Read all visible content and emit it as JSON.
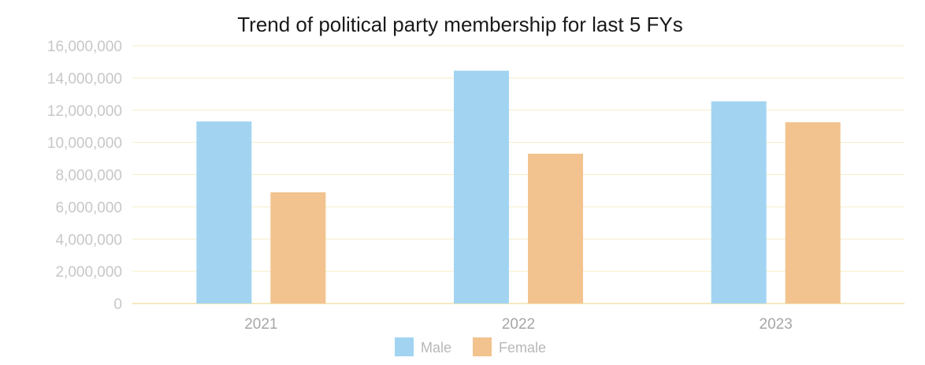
{
  "chart_data": {
    "type": "bar",
    "title": "Trend of political party membership for last 5 FYs",
    "xlabel": "",
    "ylabel": "",
    "categories": [
      "2021",
      "2022",
      "2023"
    ],
    "series": [
      {
        "name": "Male",
        "values": [
          11300000,
          14450000,
          12550000
        ],
        "color": "#a2d4f2"
      },
      {
        "name": "Female",
        "values": [
          6900000,
          9300000,
          11250000
        ],
        "color": "#f2c38f"
      }
    ],
    "ylim": [
      0,
      16000000
    ],
    "yticks": [
      0,
      2000000,
      4000000,
      6000000,
      8000000,
      10000000,
      12000000,
      14000000,
      16000000
    ],
    "ytick_labels": [
      "0",
      "2,000,000",
      "4,000,000",
      "6,000,000",
      "8,000,000",
      "10,000,000",
      "12,000,000",
      "14,000,000",
      "16,000,000"
    ],
    "grid": true,
    "gridline_color": "#f5edc8",
    "axis_color": "#f0e2a8",
    "legend_position": "bottom"
  }
}
